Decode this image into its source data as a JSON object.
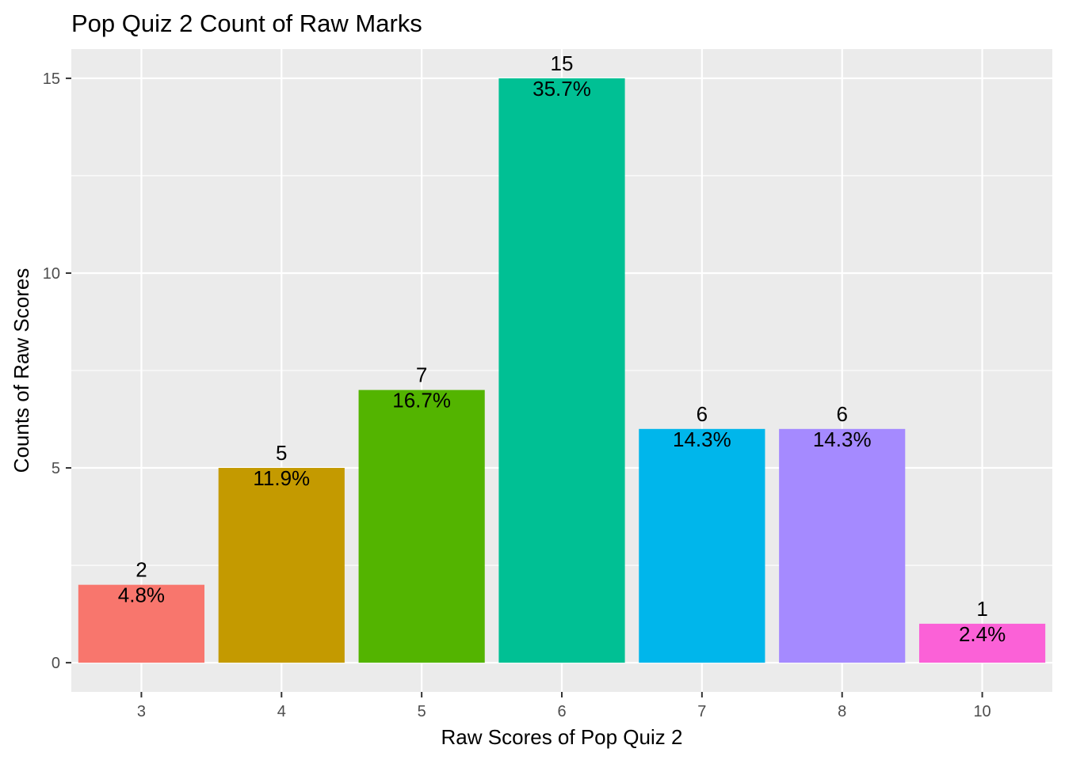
{
  "chart_data": {
    "type": "bar",
    "title": "Pop Quiz 2 Count of Raw Marks",
    "xlabel": "Raw Scores of Pop Quiz 2",
    "ylabel": "Counts of Raw Scores",
    "categories": [
      "3",
      "4",
      "5",
      "6",
      "7",
      "8",
      "10"
    ],
    "values": [
      2,
      5,
      7,
      15,
      6,
      6,
      1
    ],
    "percent_labels": [
      "4.8%",
      "11.9%",
      "16.7%",
      "35.7%",
      "14.3%",
      "14.3%",
      "2.4%"
    ],
    "colors": [
      "#F8766D",
      "#C49A00",
      "#53B400",
      "#00C094",
      "#00B6EB",
      "#A58AFF",
      "#FB61D7"
    ],
    "ylim": [
      -0.75,
      15.75
    ],
    "yticks": [
      0,
      5,
      10,
      15
    ],
    "panel_background": "#EBEBEB",
    "grid": true,
    "legend": "none"
  }
}
